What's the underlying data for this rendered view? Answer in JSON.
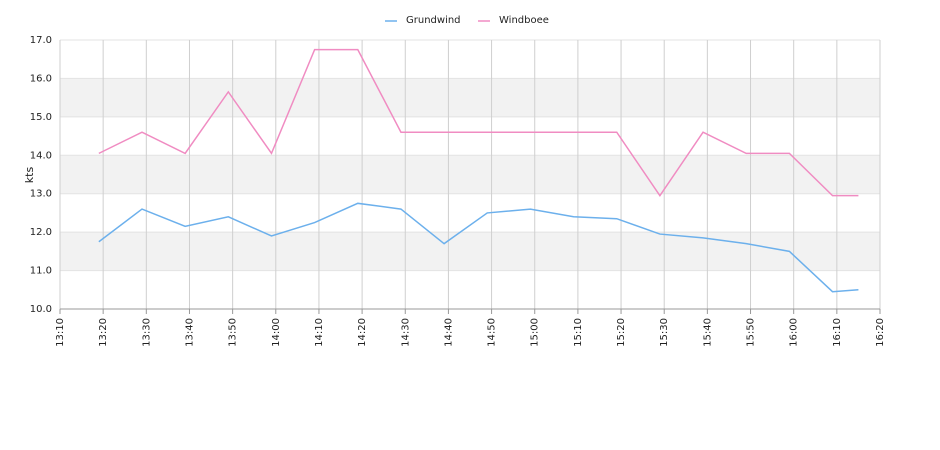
{
  "chart_data": {
    "type": "line",
    "y_label": "kts",
    "x": [
      "13:19",
      "13:29",
      "13:39",
      "13:49",
      "13:59",
      "14:09",
      "14:19",
      "14:29",
      "14:39",
      "14:49",
      "14:59",
      "15:09",
      "15:19",
      "15:29",
      "15:39",
      "15:49",
      "15:59",
      "16:09",
      "16:15"
    ],
    "series": [
      {
        "name": "Grundwind",
        "color": "#6cb0ec",
        "values": [
          11.75,
          12.6,
          12.15,
          12.4,
          11.9,
          12.25,
          12.75,
          12.6,
          11.7,
          12.5,
          12.6,
          12.4,
          12.35,
          11.95,
          11.85,
          11.7,
          11.5,
          10.45,
          10.5
        ]
      },
      {
        "name": "Windboee",
        "color": "#f08cc2",
        "values": [
          14.05,
          14.6,
          14.05,
          15.65,
          14.05,
          16.75,
          16.75,
          14.6,
          14.6,
          14.6,
          14.6,
          14.6,
          14.6,
          12.95,
          14.6,
          14.05,
          14.05,
          12.95,
          12.95
        ]
      }
    ],
    "xlim": [
      "13:10",
      "16:20"
    ],
    "xticks": [
      "13:10",
      "13:20",
      "13:30",
      "13:40",
      "13:50",
      "14:00",
      "14:10",
      "14:20",
      "14:30",
      "14:40",
      "14:50",
      "15:00",
      "15:10",
      "15:20",
      "15:30",
      "15:40",
      "15:50",
      "16:00",
      "16:10",
      "16:20"
    ],
    "ylim": [
      10,
      17
    ],
    "yticks": [
      {
        "value": 10,
        "label": "10.0"
      },
      {
        "value": 11,
        "label": "11.0"
      },
      {
        "value": 12,
        "label": "12.0"
      },
      {
        "value": 13,
        "label": "13.0"
      },
      {
        "value": 14,
        "label": "14.0"
      },
      {
        "value": 15,
        "label": "15.0"
      },
      {
        "value": 16,
        "label": "16.0"
      },
      {
        "value": 17,
        "label": "17.0"
      }
    ],
    "grid": true,
    "legend": "top"
  }
}
